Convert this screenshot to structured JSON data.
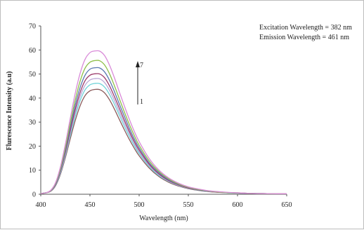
{
  "chart_data": {
    "type": "line",
    "title": "",
    "xlabel": "Wavelength (nm)",
    "ylabel": "Flurescence Intensity (a.u)",
    "xlim": [
      400,
      650
    ],
    "ylim": [
      0,
      70
    ],
    "x_ticks": [
      "400",
      "450",
      "500",
      "550",
      "600",
      "650"
    ],
    "y_ticks": [
      "0",
      "10",
      "20",
      "30",
      "40",
      "50",
      "60",
      "70"
    ],
    "grid": false,
    "legend": "none",
    "annotations": {
      "excitation": "Excitation Wavelength =  382 nm",
      "emission": "Emission Wavelength = 461 nm",
      "arrow_top_label": "7",
      "arrow_bottom_label": "1"
    },
    "x": [
      400,
      405,
      410,
      415,
      420,
      425,
      430,
      435,
      440,
      445,
      450,
      455,
      460,
      465,
      470,
      475,
      480,
      485,
      490,
      495,
      500,
      510,
      520,
      530,
      540,
      550,
      560,
      570,
      580,
      590,
      600,
      610,
      620,
      630,
      640,
      650
    ],
    "peak_wavelength": 461,
    "series": [
      {
        "color": "#8b5a5a",
        "peak": 43.5,
        "values": [
          0.3,
          0.6,
          1.2,
          3.5,
          8.3,
          15.2,
          23.1,
          30.6,
          36.8,
          41.0,
          43.0,
          43.6,
          43.5,
          42.1,
          39.2,
          35.3,
          31.0,
          26.8,
          22.8,
          19.2,
          16.0,
          11.0,
          7.4,
          5.0,
          3.4,
          2.3,
          1.6,
          1.1,
          0.8,
          0.6,
          0.5,
          0.4,
          0.3,
          0.25,
          0.2,
          0.2
        ]
      },
      {
        "color": "#6fd3d8",
        "peak": 46.0,
        "values": [
          0.3,
          0.6,
          1.3,
          3.7,
          8.8,
          16.1,
          24.4,
          32.4,
          38.9,
          43.4,
          45.5,
          46.1,
          46.0,
          44.5,
          41.4,
          37.3,
          32.8,
          28.3,
          24.1,
          20.3,
          16.9,
          11.6,
          7.8,
          5.3,
          3.6,
          2.4,
          1.7,
          1.2,
          0.9,
          0.6,
          0.5,
          0.4,
          0.3,
          0.25,
          0.2,
          0.2
        ]
      },
      {
        "color": "#b9a6d6",
        "peak": 48.0,
        "values": [
          0.3,
          0.6,
          1.3,
          3.9,
          9.2,
          16.8,
          25.5,
          33.8,
          40.6,
          45.3,
          47.5,
          48.1,
          48.0,
          46.4,
          43.2,
          38.9,
          34.2,
          29.6,
          25.2,
          21.2,
          17.6,
          12.1,
          8.2,
          5.5,
          3.7,
          2.5,
          1.8,
          1.2,
          0.9,
          0.7,
          0.5,
          0.4,
          0.3,
          0.25,
          0.2,
          0.2
        ]
      },
      {
        "color": "#9c3a6a",
        "peak": 50.0,
        "values": [
          0.3,
          0.6,
          1.4,
          4.0,
          9.6,
          17.5,
          26.5,
          35.2,
          42.3,
          47.2,
          49.5,
          50.1,
          50.0,
          48.4,
          45.0,
          40.5,
          35.7,
          30.8,
          26.2,
          22.0,
          18.4,
          12.6,
          8.5,
          5.7,
          3.9,
          2.6,
          1.8,
          1.3,
          0.9,
          0.7,
          0.5,
          0.4,
          0.3,
          0.25,
          0.2,
          0.2
        ]
      },
      {
        "color": "#5a78b0",
        "peak": 52.5,
        "values": [
          0.3,
          0.6,
          1.4,
          4.2,
          10.0,
          18.4,
          27.9,
          37.0,
          44.4,
          49.5,
          52.0,
          52.6,
          52.5,
          50.8,
          47.3,
          42.6,
          37.4,
          32.4,
          27.5,
          23.1,
          19.3,
          13.2,
          9.0,
          6.0,
          4.1,
          2.8,
          1.9,
          1.3,
          1.0,
          0.7,
          0.5,
          0.4,
          0.3,
          0.25,
          0.2,
          0.2
        ]
      },
      {
        "color": "#8fbf4a",
        "peak": 55.5,
        "values": [
          0.3,
          0.6,
          1.5,
          4.5,
          10.6,
          19.4,
          29.5,
          39.1,
          47.0,
          52.4,
          54.9,
          55.6,
          55.5,
          53.7,
          50.0,
          45.0,
          39.6,
          34.2,
          29.1,
          24.5,
          20.4,
          14.0,
          9.5,
          6.4,
          4.3,
          2.9,
          2.0,
          1.4,
          1.0,
          0.7,
          0.6,
          0.4,
          0.3,
          0.25,
          0.2,
          0.2
        ]
      },
      {
        "color": "#d98ad8",
        "peak": 59.5,
        "values": [
          0.3,
          0.6,
          1.6,
          4.8,
          11.4,
          20.8,
          31.6,
          41.9,
          50.3,
          56.1,
          58.9,
          59.6,
          59.5,
          57.6,
          53.6,
          48.3,
          42.4,
          36.7,
          31.2,
          26.2,
          21.9,
          15.0,
          10.1,
          6.8,
          4.6,
          3.1,
          2.2,
          1.5,
          1.1,
          0.8,
          0.6,
          0.4,
          0.3,
          0.25,
          0.2,
          0.2
        ]
      }
    ]
  }
}
